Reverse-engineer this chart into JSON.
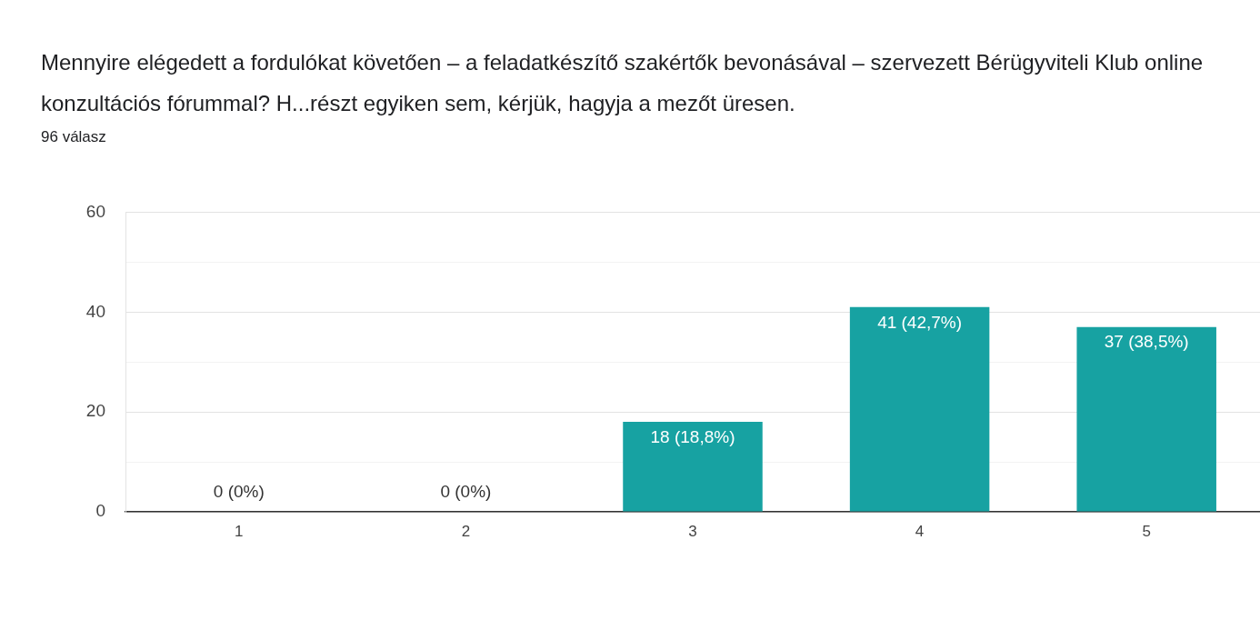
{
  "chart_data": {
    "type": "bar",
    "title": "Mennyire elégedett a fordulókat követően – a feladatkészítő szakértők bevonásával – szervezett Bérügyviteli Klub online konzultációs fórummal? H...részt egyiken sem, kérjük, hagyja a mezőt üresen.",
    "subtitle": "96 válasz",
    "categories": [
      "1",
      "2",
      "3",
      "4",
      "5"
    ],
    "values": [
      0,
      0,
      18,
      41,
      37
    ],
    "value_labels": [
      "0 (0%)",
      "0 (0%)",
      "18 (18,8%)",
      "41 (42,7%)",
      "37 (38,5%)"
    ],
    "color": "#17a2a2",
    "ylim": [
      0,
      60
    ],
    "yticks": [
      0,
      {
        "value": 10,
        "label": null
      },
      20,
      {
        "value": 30,
        "label": null
      },
      40,
      {
        "value": 50,
        "label": null
      },
      60
    ],
    "grid": "y"
  }
}
